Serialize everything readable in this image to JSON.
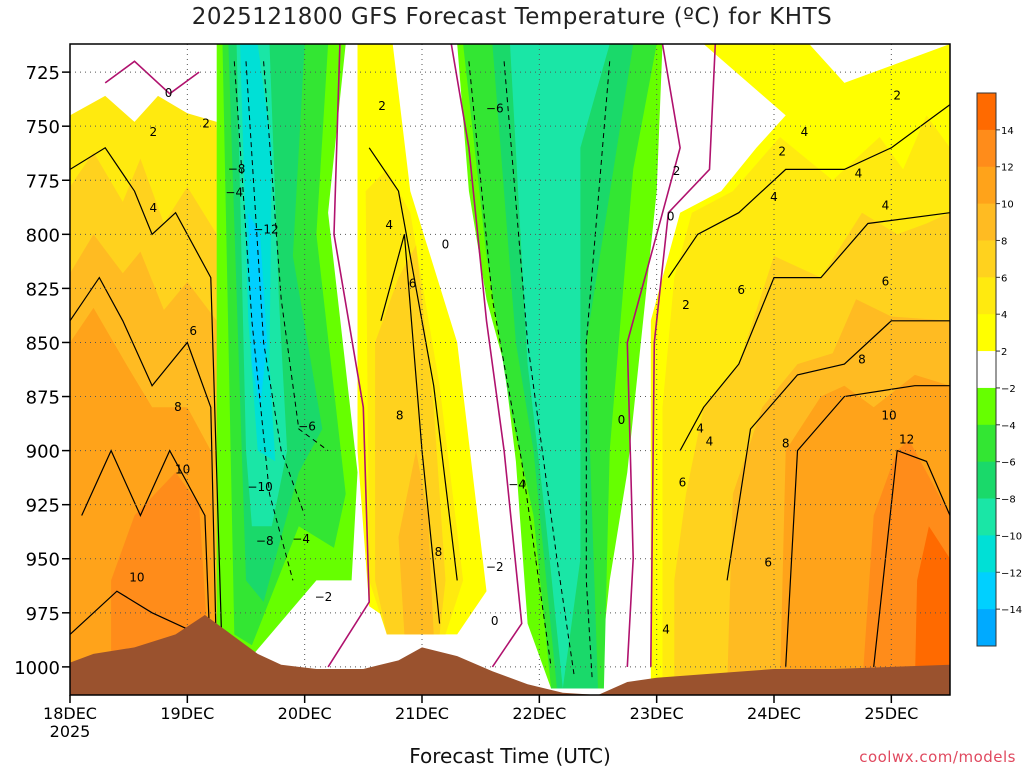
{
  "chart_data": {
    "type": "heatmap",
    "title": "2025121800 GFS Forecast Temperature (ºC) for KHTS",
    "xlabel": "Forecast Time (UTC)",
    "ylabel": "",
    "y_axis": {
      "ticks": [
        725,
        750,
        775,
        800,
        825,
        850,
        875,
        900,
        925,
        950,
        975,
        1000
      ],
      "range_top": 712,
      "range_bottom": 1013
    },
    "x_axis": {
      "tick_labels": [
        "18DEC",
        "19DEC",
        "20DEC",
        "21DEC",
        "22DEC",
        "23DEC",
        "24DEC",
        "25DEC"
      ],
      "tick_days": [
        0,
        1,
        2,
        3,
        4,
        5,
        6,
        7
      ],
      "sub_label": "2025",
      "range_days": [
        0,
        7.5
      ]
    },
    "grid": true,
    "colorbar": {
      "levels": [
        -14,
        -12,
        -10,
        -8,
        -6,
        -4,
        -2,
        2,
        4,
        6,
        8,
        10,
        12,
        14
      ],
      "labels": [
        "14",
        "12",
        "10",
        "8",
        "6",
        "4",
        "2",
        "−2",
        "−4",
        "−6",
        "−8",
        "−10",
        "−12",
        "−14"
      ],
      "colors": [
        "#ff6a00",
        "#ff8c1a",
        "#ffa31a",
        "#ffbb22",
        "#ffd21e",
        "#ffea0f",
        "#ffff00",
        "#ffffff",
        "#66ff00",
        "#33e633",
        "#1ad96a",
        "#1ae6a6",
        "#00e0d6",
        "#00d0ff",
        "#00aaff"
      ]
    },
    "terrain_color": "#9a522e",
    "contour_labels": [
      {
        "text": "0",
        "day": 0.84,
        "p": 735
      },
      {
        "text": "2",
        "day": 0.71,
        "p": 753
      },
      {
        "text": "2",
        "day": 1.16,
        "p": 749
      },
      {
        "text": "4",
        "day": 0.71,
        "p": 788
      },
      {
        "text": "6",
        "day": 1.05,
        "p": 845
      },
      {
        "text": "8",
        "day": 0.92,
        "p": 880
      },
      {
        "text": "10",
        "day": 0.96,
        "p": 909
      },
      {
        "text": "10",
        "day": 0.57,
        "p": 959
      },
      {
        "text": "−8",
        "day": 1.42,
        "p": 770
      },
      {
        "text": "−4",
        "day": 1.4,
        "p": 781
      },
      {
        "text": "−12",
        "day": 1.67,
        "p": 798
      },
      {
        "text": "−10",
        "day": 1.62,
        "p": 917
      },
      {
        "text": "−8",
        "day": 1.66,
        "p": 942
      },
      {
        "text": "−6",
        "day": 2.02,
        "p": 889
      },
      {
        "text": "−4",
        "day": 1.97,
        "p": 941
      },
      {
        "text": "−2",
        "day": 2.16,
        "p": 968
      },
      {
        "text": "2",
        "day": 2.66,
        "p": 741
      },
      {
        "text": "4",
        "day": 2.72,
        "p": 796
      },
      {
        "text": "6",
        "day": 2.92,
        "p": 823
      },
      {
        "text": "8",
        "day": 2.81,
        "p": 884
      },
      {
        "text": "8",
        "day": 3.14,
        "p": 947
      },
      {
        "text": "0",
        "day": 3.2,
        "p": 805
      },
      {
        "text": "−6",
        "day": 3.62,
        "p": 742
      },
      {
        "text": "−4",
        "day": 3.81,
        "p": 916
      },
      {
        "text": "−2",
        "day": 3.62,
        "p": 954
      },
      {
        "text": "0",
        "day": 3.62,
        "p": 979
      },
      {
        "text": "0",
        "day": 4.7,
        "p": 886
      },
      {
        "text": "2",
        "day": 5.17,
        "p": 771
      },
      {
        "text": "0",
        "day": 5.12,
        "p": 792
      },
      {
        "text": "2",
        "day": 5.25,
        "p": 833
      },
      {
        "text": "4",
        "day": 5.37,
        "p": 890
      },
      {
        "text": "4",
        "day": 5.45,
        "p": 896
      },
      {
        "text": "6",
        "day": 5.22,
        "p": 915
      },
      {
        "text": "4",
        "day": 5.08,
        "p": 983
      },
      {
        "text": "4",
        "day": 6.26,
        "p": 753
      },
      {
        "text": "2",
        "day": 6.07,
        "p": 762
      },
      {
        "text": "4",
        "day": 6.0,
        "p": 783
      },
      {
        "text": "6",
        "day": 5.72,
        "p": 826
      },
      {
        "text": "8",
        "day": 6.1,
        "p": 897
      },
      {
        "text": "6",
        "day": 5.95,
        "p": 952
      },
      {
        "text": "2",
        "day": 7.05,
        "p": 736
      },
      {
        "text": "4",
        "day": 6.72,
        "p": 772
      },
      {
        "text": "4",
        "day": 6.95,
        "p": 787
      },
      {
        "text": "6",
        "day": 6.95,
        "p": 822
      },
      {
        "text": "8",
        "day": 6.75,
        "p": 858
      },
      {
        "text": "10",
        "day": 6.98,
        "p": 884
      },
      {
        "text": "12",
        "day": 7.13,
        "p": 895
      }
    ]
  },
  "watermark": "coolwx.com/models"
}
